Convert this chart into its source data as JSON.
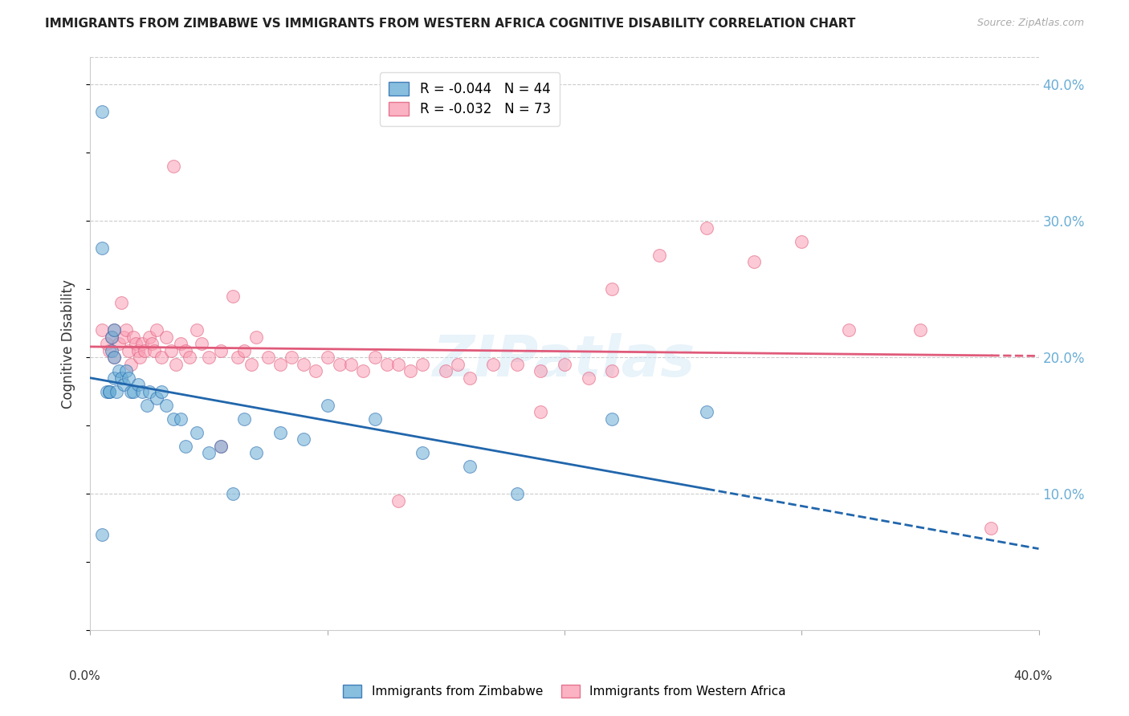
{
  "title": "IMMIGRANTS FROM ZIMBABWE VS IMMIGRANTS FROM WESTERN AFRICA COGNITIVE DISABILITY CORRELATION CHART",
  "source": "Source: ZipAtlas.com",
  "ylabel": "Cognitive Disability",
  "right_yticks": [
    "40.0%",
    "30.0%",
    "20.0%",
    "10.0%"
  ],
  "right_ytick_vals": [
    0.4,
    0.3,
    0.2,
    0.1
  ],
  "xlim": [
    0.0,
    0.4
  ],
  "ylim": [
    0.0,
    0.42
  ],
  "color_blue": "#6baed6",
  "color_pink": "#fa9fb5",
  "line_blue": "#2166ac",
  "line_pink": "#e05a7a",
  "background": "#ffffff",
  "zimbabwe_x": [
    0.005,
    0.005,
    0.005,
    0.007,
    0.008,
    0.008,
    0.009,
    0.009,
    0.01,
    0.01,
    0.01,
    0.011,
    0.012,
    0.013,
    0.014,
    0.015,
    0.016,
    0.017,
    0.018,
    0.02,
    0.022,
    0.024,
    0.025,
    0.028,
    0.03,
    0.032,
    0.035,
    0.038,
    0.04,
    0.045,
    0.05,
    0.055,
    0.06,
    0.065,
    0.07,
    0.08,
    0.09,
    0.1,
    0.12,
    0.14,
    0.16,
    0.18,
    0.22,
    0.26
  ],
  "zimbabwe_y": [
    0.38,
    0.28,
    0.07,
    0.175,
    0.175,
    0.175,
    0.215,
    0.205,
    0.22,
    0.2,
    0.185,
    0.175,
    0.19,
    0.185,
    0.18,
    0.19,
    0.185,
    0.175,
    0.175,
    0.18,
    0.175,
    0.165,
    0.175,
    0.17,
    0.175,
    0.165,
    0.155,
    0.155,
    0.135,
    0.145,
    0.13,
    0.135,
    0.1,
    0.155,
    0.13,
    0.145,
    0.14,
    0.165,
    0.155,
    0.13,
    0.12,
    0.1,
    0.155,
    0.16
  ],
  "western_africa_x": [
    0.005,
    0.007,
    0.008,
    0.009,
    0.01,
    0.01,
    0.012,
    0.013,
    0.014,
    0.015,
    0.016,
    0.017,
    0.018,
    0.019,
    0.02,
    0.021,
    0.022,
    0.023,
    0.025,
    0.026,
    0.027,
    0.028,
    0.03,
    0.032,
    0.034,
    0.036,
    0.038,
    0.04,
    0.042,
    0.045,
    0.047,
    0.05,
    0.055,
    0.06,
    0.062,
    0.065,
    0.068,
    0.07,
    0.075,
    0.08,
    0.085,
    0.09,
    0.095,
    0.1,
    0.105,
    0.11,
    0.115,
    0.12,
    0.125,
    0.13,
    0.135,
    0.14,
    0.15,
    0.155,
    0.16,
    0.17,
    0.18,
    0.19,
    0.2,
    0.21,
    0.22,
    0.24,
    0.26,
    0.28,
    0.3,
    0.32,
    0.035,
    0.055,
    0.13,
    0.19,
    0.22,
    0.35,
    0.38
  ],
  "western_africa_y": [
    0.22,
    0.21,
    0.205,
    0.215,
    0.22,
    0.2,
    0.21,
    0.24,
    0.215,
    0.22,
    0.205,
    0.195,
    0.215,
    0.21,
    0.205,
    0.2,
    0.21,
    0.205,
    0.215,
    0.21,
    0.205,
    0.22,
    0.2,
    0.215,
    0.205,
    0.195,
    0.21,
    0.205,
    0.2,
    0.22,
    0.21,
    0.2,
    0.205,
    0.245,
    0.2,
    0.205,
    0.195,
    0.215,
    0.2,
    0.195,
    0.2,
    0.195,
    0.19,
    0.2,
    0.195,
    0.195,
    0.19,
    0.2,
    0.195,
    0.195,
    0.19,
    0.195,
    0.19,
    0.195,
    0.185,
    0.195,
    0.195,
    0.19,
    0.195,
    0.185,
    0.19,
    0.275,
    0.295,
    0.27,
    0.285,
    0.22,
    0.34,
    0.135,
    0.095,
    0.16,
    0.25,
    0.22,
    0.075
  ]
}
